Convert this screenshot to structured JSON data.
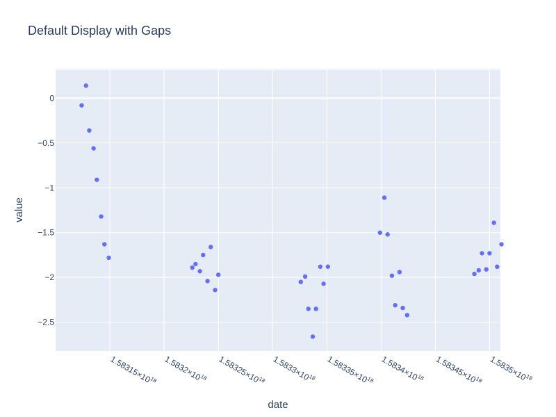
{
  "chart_data": {
    "type": "scatter",
    "title": "Default Display with Gaps",
    "xlabel": "date",
    "ylabel": "value",
    "grid": true,
    "legend": "none",
    "marker_color": "#636efa",
    "plot_bg": "#e5ecf6",
    "xlim": [
      1.5831e+18,
      1.58351e+18
    ],
    "ylim": [
      -2.82,
      0.32
    ],
    "x_ticks": [
      {
        "value": 1.58315e+18,
        "mantissa": "1.58315",
        "exp": "18"
      },
      {
        "value": 1.5832e+18,
        "mantissa": "1.5832",
        "exp": "18"
      },
      {
        "value": 1.58325e+18,
        "mantissa": "1.58325",
        "exp": "18"
      },
      {
        "value": 1.5833e+18,
        "mantissa": "1.5833",
        "exp": "18"
      },
      {
        "value": 1.58335e+18,
        "mantissa": "1.58335",
        "exp": "18"
      },
      {
        "value": 1.5834e+18,
        "mantissa": "1.5834",
        "exp": "18"
      },
      {
        "value": 1.58345e+18,
        "mantissa": "1.58345",
        "exp": "18"
      },
      {
        "value": 1.5835e+18,
        "mantissa": "1.5835",
        "exp": "18"
      }
    ],
    "y_ticks": [
      {
        "value": 0,
        "label": "0"
      },
      {
        "value": -0.5,
        "label": "−0.5"
      },
      {
        "value": -1,
        "label": "−1"
      },
      {
        "value": -1.5,
        "label": "−1.5"
      },
      {
        "value": -2,
        "label": "−2"
      },
      {
        "value": -2.5,
        "label": "−2.5"
      }
    ],
    "x": [
      1.583124e+18,
      1.583128e+18,
      1.583131e+18,
      1.583135e+18,
      1.583138e+18,
      1.583142e+18,
      1.583145e+18,
      1.583149e+18,
      1.583226e+18,
      1.583229e+18,
      1.583233e+18,
      1.583236e+18,
      1.58324e+18,
      1.583243e+18,
      1.583247e+18,
      1.58325e+18,
      1.583326e+18,
      1.58333e+18,
      1.583333e+18,
      1.583337e+18,
      1.58334e+18,
      1.583344e+18,
      1.583347e+18,
      1.583351e+18,
      1.583399e+18,
      1.583403e+18,
      1.583406e+18,
      1.58341e+18,
      1.583413e+18,
      1.583417e+18,
      1.58342e+18,
      1.583424e+18,
      1.583486e+18,
      1.58349e+18,
      1.583493e+18,
      1.583497e+18,
      1.5835e+18,
      1.583504e+18,
      1.583507e+18,
      1.583511e+18
    ],
    "y": [
      -0.08,
      0.14,
      -0.36,
      -0.56,
      -0.91,
      -1.32,
      -1.63,
      -1.78,
      -1.89,
      -1.85,
      -1.93,
      -1.75,
      -2.04,
      -1.66,
      -2.14,
      -1.97,
      -2.05,
      -1.99,
      -2.35,
      -2.66,
      -2.35,
      -1.88,
      -2.07,
      -1.88,
      -1.5,
      -1.11,
      -1.52,
      -1.98,
      -2.31,
      -1.94,
      -2.34,
      -2.42,
      -1.96,
      -1.92,
      -1.73,
      -1.91,
      -1.73,
      -1.39,
      -1.88,
      -1.63
    ]
  }
}
